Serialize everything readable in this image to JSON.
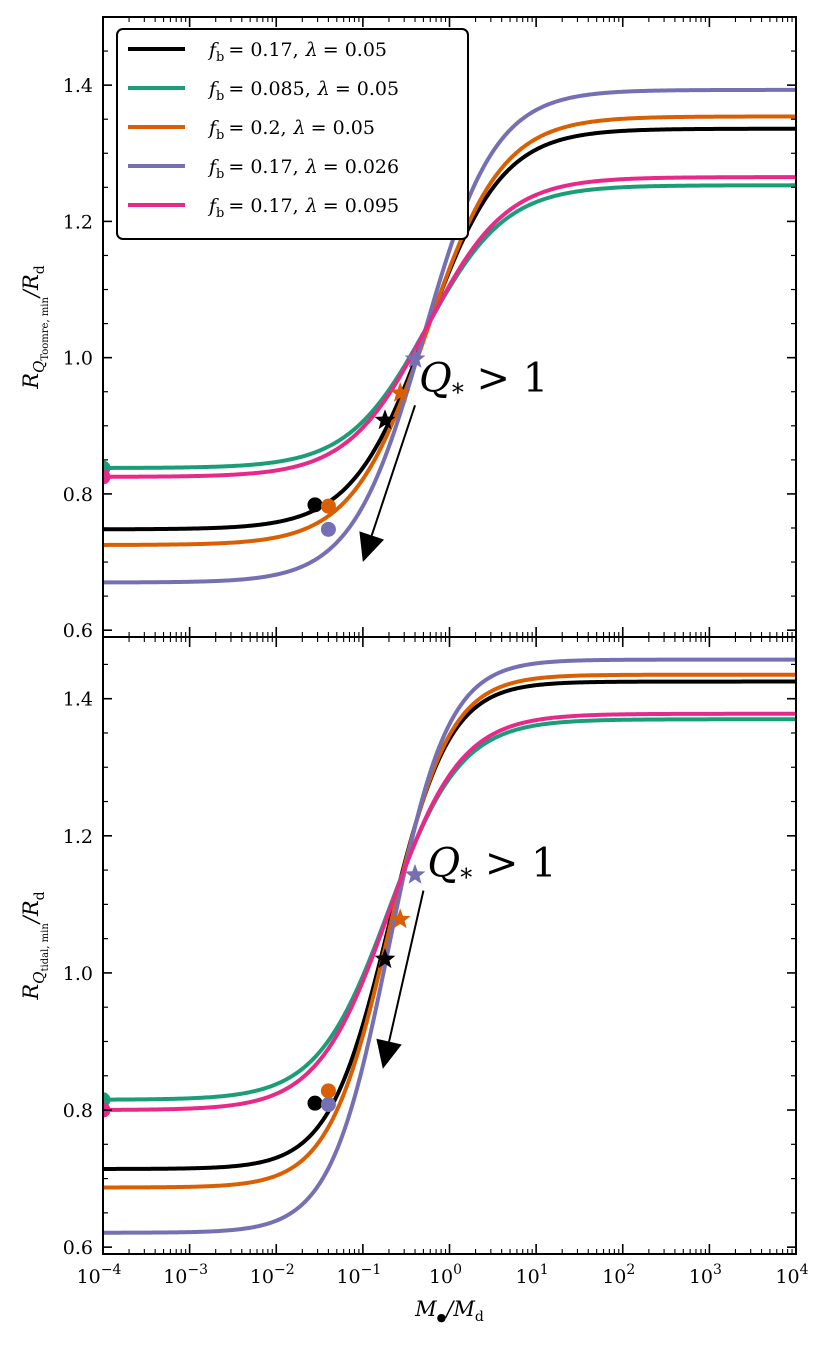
{
  "chart_data": [
    {
      "type": "line",
      "panel": "top",
      "ylabel": "R_{Q_Toomre,min}/R_d",
      "ylabel_main": "R",
      "ylabel_sub": "Q",
      "ylabel_subsub": "Toomre, min",
      "ylabel_tail": "/R",
      "ylabel_tail_sub": "d",
      "xscale": "log",
      "xlim": [
        0.0001,
        10000
      ],
      "ylim": [
        0.59,
        1.5
      ],
      "yticks": [
        0.6,
        0.8,
        1.0,
        1.2,
        1.4
      ],
      "ytick_labels": [
        "0.6",
        "0.8",
        "1.0",
        "1.2",
        "1.4"
      ],
      "annotation": {
        "text_main": "Q",
        "text_sub": "*",
        "text_rest": " > 1",
        "arrow_from": [
          0.4,
          0.93
        ],
        "arrow_to": [
          0.1,
          0.7
        ]
      },
      "series": [
        {
          "name": "fb=0.17, lambda=0.05",
          "color": "#000000",
          "low": 0.748,
          "high": 1.336,
          "x0": 0.55,
          "w": 1.0,
          "circle": {
            "x": 0.028,
            "y": 0.784
          },
          "star": {
            "x": 0.18,
            "y": 0.908
          }
        },
        {
          "name": "fb=0.085, lambda=0.05",
          "color": "#1b9e77",
          "low": 0.838,
          "high": 1.253,
          "x0": 0.55,
          "w": 1.05,
          "circle": {
            "x": 0.0001,
            "y": 0.838
          },
          "star": null
        },
        {
          "name": "fb=0.2, lambda=0.05",
          "color": "#d95f02",
          "low": 0.725,
          "high": 1.354,
          "x0": 0.55,
          "w": 1.0,
          "circle": {
            "x": 0.04,
            "y": 0.782
          },
          "star": {
            "x": 0.27,
            "y": 0.948
          }
        },
        {
          "name": "fb=0.17, lambda=0.026",
          "color": "#7570b3",
          "low": 0.67,
          "high": 1.393,
          "x0": 0.5,
          "w": 0.95,
          "circle": {
            "x": 0.04,
            "y": 0.748
          },
          "star": {
            "x": 0.4,
            "y": 0.998
          }
        },
        {
          "name": "fb=0.17, lambda=0.095",
          "color": "#e7298a",
          "low": 0.825,
          "high": 1.265,
          "x0": 0.55,
          "w": 1.05,
          "circle": {
            "x": 0.0001,
            "y": 0.825
          },
          "star": null
        }
      ]
    },
    {
      "type": "line",
      "panel": "bottom",
      "ylabel": "R_{Q_tidal,min}/R_d",
      "ylabel_main": "R",
      "ylabel_sub": "Q",
      "ylabel_subsub": "tidal, min",
      "ylabel_tail": "/R",
      "ylabel_tail_sub": "d",
      "xlabel_main": "M",
      "xlabel_sub": "●",
      "xlabel_tail": "/M",
      "xlabel_tail_sub": "d",
      "xscale": "log",
      "xlim": [
        0.0001,
        10000
      ],
      "ylim": [
        0.59,
        1.49
      ],
      "yticks": [
        0.6,
        0.8,
        1.0,
        1.2,
        1.4
      ],
      "ytick_labels": [
        "0.6",
        "0.8",
        "1.0",
        "1.2",
        "1.4"
      ],
      "xticks_base": "10",
      "xticks_exp": [
        "−4",
        "−3",
        "−2",
        "−1",
        "0",
        "1",
        "2",
        "3",
        "4"
      ],
      "annotation": {
        "text_main": "Q",
        "text_sub": "*",
        "text_rest": " > 1",
        "arrow_from": [
          0.5,
          1.12
        ],
        "arrow_to": [
          0.17,
          0.86
        ]
      },
      "series": [
        {
          "name": "fb=0.17, lambda=0.05",
          "color": "#000000",
          "low": 0.714,
          "high": 1.425,
          "x0": 0.2,
          "w": 0.8,
          "circle": {
            "x": 0.028,
            "y": 0.81
          },
          "star": {
            "x": 0.18,
            "y": 1.02
          }
        },
        {
          "name": "fb=0.085, lambda=0.05",
          "color": "#1b9e77",
          "low": 0.815,
          "high": 1.37,
          "x0": 0.2,
          "w": 0.95,
          "circle": {
            "x": 0.0001,
            "y": 0.815
          },
          "star": null
        },
        {
          "name": "fb=0.2, lambda=0.05",
          "color": "#d95f02",
          "low": 0.687,
          "high": 1.435,
          "x0": 0.2,
          "w": 0.8,
          "circle": {
            "x": 0.04,
            "y": 0.828
          },
          "star": {
            "x": 0.27,
            "y": 1.078
          }
        },
        {
          "name": "fb=0.17, lambda=0.026",
          "color": "#7570b3",
          "low": 0.621,
          "high": 1.457,
          "x0": 0.2,
          "w": 0.78,
          "circle": {
            "x": 0.04,
            "y": 0.808
          },
          "star": {
            "x": 0.4,
            "y": 1.143
          }
        },
        {
          "name": "fb=0.17, lambda=0.095",
          "color": "#e7298a",
          "low": 0.8,
          "high": 1.378,
          "x0": 0.2,
          "w": 0.95,
          "circle": {
            "x": 0.0001,
            "y": 0.8
          },
          "star": null
        }
      ]
    }
  ],
  "legend": {
    "placement": "top-left",
    "entries": [
      {
        "f": "f",
        "f_sub": "b",
        "fb": "= 0.17,",
        "lam": "λ",
        "lam_val": "= 0.05",
        "color": "#000000"
      },
      {
        "f": "f",
        "f_sub": "b",
        "fb": "= 0.085,",
        "lam": "λ",
        "lam_val": "= 0.05",
        "color": "#1b9e77"
      },
      {
        "f": "f",
        "f_sub": "b",
        "fb": "= 0.2,",
        "lam": "λ",
        "lam_val": "= 0.05",
        "color": "#d95f02"
      },
      {
        "f": "f",
        "f_sub": "b",
        "fb": "= 0.17,",
        "lam": "λ",
        "lam_val": "= 0.026",
        "color": "#7570b3"
      },
      {
        "f": "f",
        "f_sub": "b",
        "fb": "= 0.17,",
        "lam": "λ",
        "lam_val": "= 0.095",
        "color": "#e7298a"
      }
    ]
  }
}
